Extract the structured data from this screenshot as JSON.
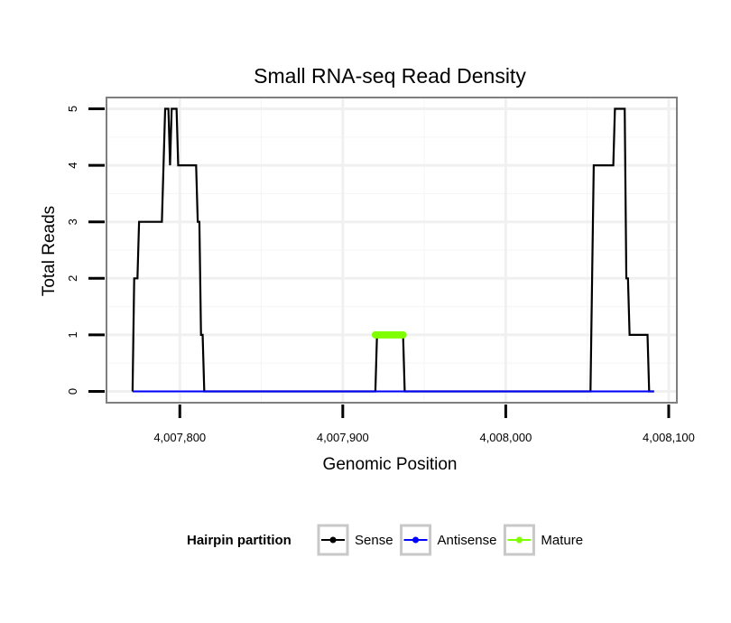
{
  "chart_data": {
    "type": "line",
    "title": "Small RNA-seq Read Density",
    "xlabel": "Genomic Position",
    "ylabel": "Total Reads",
    "xlim": [
      4007755,
      4008105
    ],
    "ylim": [
      -0.2,
      5.2
    ],
    "x_ticks": [
      4007800,
      4007900,
      4008000,
      4008100
    ],
    "x_tick_labels": [
      "4,007,800",
      "4,007,900",
      "4,008,000",
      "4,008,100"
    ],
    "y_ticks": [
      0,
      1,
      2,
      3,
      4,
      5
    ],
    "y_tick_labels": [
      "0",
      "1",
      "2",
      "3",
      "4",
      "5"
    ],
    "grid": true,
    "legend": {
      "title": "Hairpin partition",
      "position": "bottom",
      "entries": [
        {
          "name": "Sense",
          "color": "#000000"
        },
        {
          "name": "Antisense",
          "color": "#0000ff"
        },
        {
          "name": "Mature",
          "color": "#80ff00"
        }
      ]
    },
    "series": [
      {
        "name": "Sense",
        "color": "#000000",
        "points": [
          [
            4007771,
            0
          ],
          [
            4007772,
            2
          ],
          [
            4007774,
            2
          ],
          [
            4007775,
            3
          ],
          [
            4007789,
            3
          ],
          [
            4007791,
            5
          ],
          [
            4007793,
            5
          ],
          [
            4007794,
            4
          ],
          [
            4007795,
            5
          ],
          [
            4007798,
            5
          ],
          [
            4007799,
            4
          ],
          [
            4007810,
            4
          ],
          [
            4007811,
            3
          ],
          [
            4007812,
            3
          ],
          [
            4007813,
            1
          ],
          [
            4007814,
            1
          ],
          [
            4007815,
            0
          ],
          [
            4007920,
            0
          ],
          [
            4007921,
            1
          ],
          [
            4007937,
            1
          ],
          [
            4007938,
            0
          ],
          [
            4008052,
            0
          ],
          [
            4008053,
            2
          ],
          [
            4008054,
            4
          ],
          [
            4008066,
            4
          ],
          [
            4008067,
            5
          ],
          [
            4008073,
            5
          ],
          [
            4008074,
            2
          ],
          [
            4008075,
            2
          ],
          [
            4008076,
            1
          ],
          [
            4008087,
            1
          ],
          [
            4008088,
            0
          ],
          [
            4008091,
            0
          ]
        ]
      },
      {
        "name": "Antisense",
        "color": "#0000ff",
        "points": [
          [
            4007771,
            0
          ],
          [
            4008091,
            0
          ]
        ]
      },
      {
        "name": "Mature",
        "color": "#80ff00",
        "points": [
          [
            4007920,
            1
          ],
          [
            4007937,
            1
          ]
        ]
      }
    ]
  }
}
